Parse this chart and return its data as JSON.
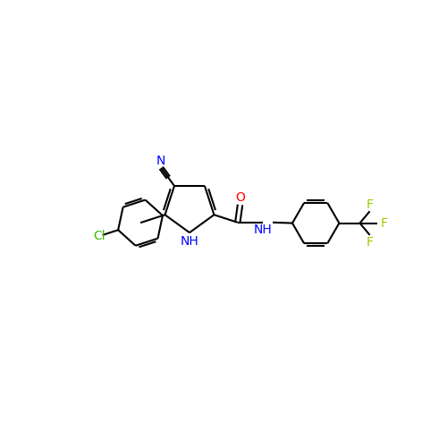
{
  "background": "#ffffff",
  "bond_color": "#000000",
  "lw": 1.5,
  "colors": {
    "N": "#0000ff",
    "O": "#ff0000",
    "Cl": "#33bb00",
    "F": "#99cc00"
  },
  "fs": 10,
  "figsize": [
    5.0,
    5.0
  ],
  "dpi": 100
}
